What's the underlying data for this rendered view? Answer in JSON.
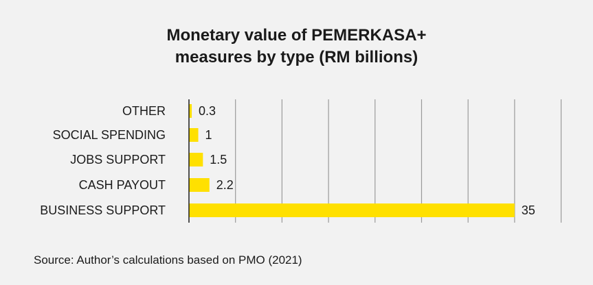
{
  "title_lines": [
    "Monetary value of PEMERKASA+",
    "measures by type (RM billions)"
  ],
  "source": "Source: Author’s calculations based on PMO (2021)",
  "chart_data": {
    "type": "bar",
    "orientation": "horizontal",
    "title": "Monetary value of PEMERKASA+ measures by type (RM billions)",
    "categories": [
      "OTHER",
      "SOCIAL SPENDING",
      "JOBS SUPPORT",
      "CASH PAYOUT",
      "BUSINESS SUPPORT"
    ],
    "values": [
      0.3,
      1,
      1.5,
      2.2,
      35
    ],
    "value_labels": [
      "0.3",
      "1",
      "1.5",
      "2.2",
      "35"
    ],
    "xlim": [
      0,
      40
    ],
    "xlabel": "",
    "ylabel": "",
    "grid": "vertical",
    "legend": "none",
    "bar_color": "#ffe000",
    "grid_color": "#9a9a9a"
  }
}
